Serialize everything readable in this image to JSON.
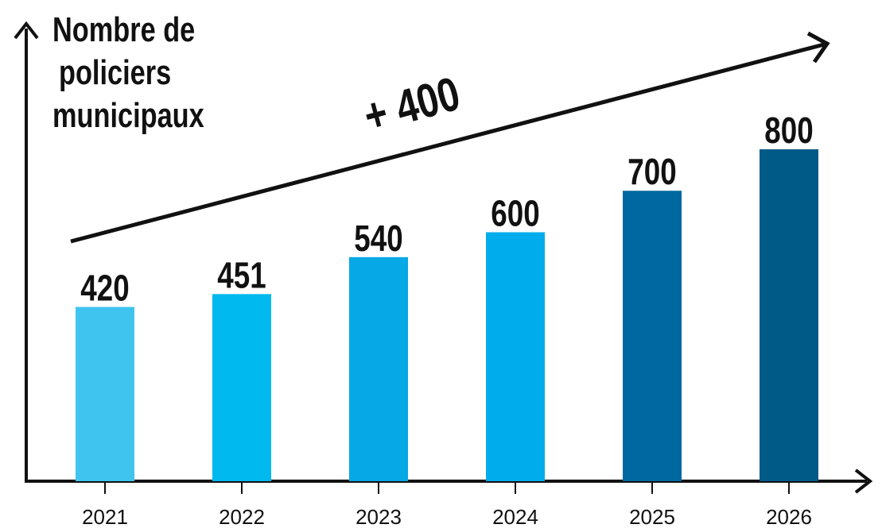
{
  "chart_data": {
    "type": "bar",
    "ylabel_lines": [
      "Nombre de",
      "policiers",
      "municipaux"
    ],
    "xlabel": "",
    "categories": [
      "2021",
      "2022",
      "2023",
      "2024",
      "2025",
      "2026"
    ],
    "values": [
      420,
      451,
      540,
      600,
      700,
      800
    ],
    "value_labels": [
      "420",
      "451",
      "540",
      "600",
      "700",
      "800"
    ],
    "bar_colors": [
      "#3fc4f0",
      "#00b9ef",
      "#06a8e6",
      "#00acec",
      "#0068a0",
      "#005a88"
    ],
    "annotation": "+ 400",
    "grid": false,
    "legend": "none"
  }
}
